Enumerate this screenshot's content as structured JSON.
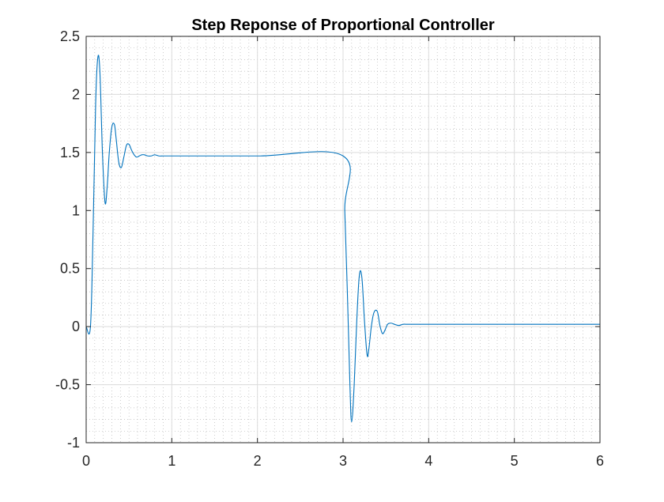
{
  "chart_data": {
    "type": "line",
    "title": "Step Reponse of Proportional Controller",
    "xlabel": "",
    "ylabel": "",
    "xlim": [
      0,
      6
    ],
    "ylim": [
      -1,
      2.5
    ],
    "xticks": [
      0,
      1,
      2,
      3,
      4,
      5,
      6
    ],
    "xtick_labels": [
      "0",
      "1",
      "2",
      "3",
      "4",
      "5",
      "6"
    ],
    "yticks": [
      -1,
      -0.5,
      0,
      0.5,
      1,
      1.5,
      2,
      2.5
    ],
    "ytick_labels": [
      "-1",
      "-0.5",
      "0",
      "0.5",
      "1",
      "1.5",
      "2",
      "2.5"
    ],
    "grid": true,
    "minor_grid": true,
    "series": [
      {
        "color": "#0072bd",
        "x": [
          0.0,
          0.05,
          0.08,
          0.11,
          0.135,
          0.16,
          0.19,
          0.22,
          0.245,
          0.27,
          0.3,
          0.33,
          0.35,
          0.38,
          0.41,
          0.44,
          0.47,
          0.5,
          0.53,
          0.56,
          0.59,
          0.62,
          0.65,
          0.68,
          0.72,
          0.76,
          0.8,
          0.85,
          0.9,
          1.0,
          2.0,
          3.0,
          3.02,
          3.05,
          3.08,
          3.1,
          3.13,
          3.16,
          3.19,
          3.22,
          3.25,
          3.28,
          3.3,
          3.33,
          3.36,
          3.4,
          3.43,
          3.46,
          3.49,
          3.52,
          3.56,
          3.6,
          3.65,
          3.7,
          3.75,
          3.8,
          4.0,
          5.0,
          6.0
        ],
        "y": [
          0.0,
          0.0,
          0.8,
          1.9,
          2.31,
          2.2,
          1.5,
          1.07,
          1.2,
          1.5,
          1.72,
          1.74,
          1.62,
          1.42,
          1.37,
          1.46,
          1.56,
          1.57,
          1.52,
          1.48,
          1.46,
          1.47,
          1.48,
          1.48,
          1.47,
          1.47,
          1.48,
          1.47,
          1.47,
          1.47,
          1.47,
          1.47,
          1.0,
          0.3,
          -0.5,
          -0.82,
          -0.5,
          0.05,
          0.44,
          0.42,
          0.05,
          -0.24,
          -0.2,
          0.0,
          0.12,
          0.13,
          0.01,
          -0.06,
          -0.03,
          0.02,
          0.03,
          0.02,
          0.01,
          0.02,
          0.02,
          0.02,
          0.02,
          0.02,
          0.02
        ]
      }
    ]
  }
}
